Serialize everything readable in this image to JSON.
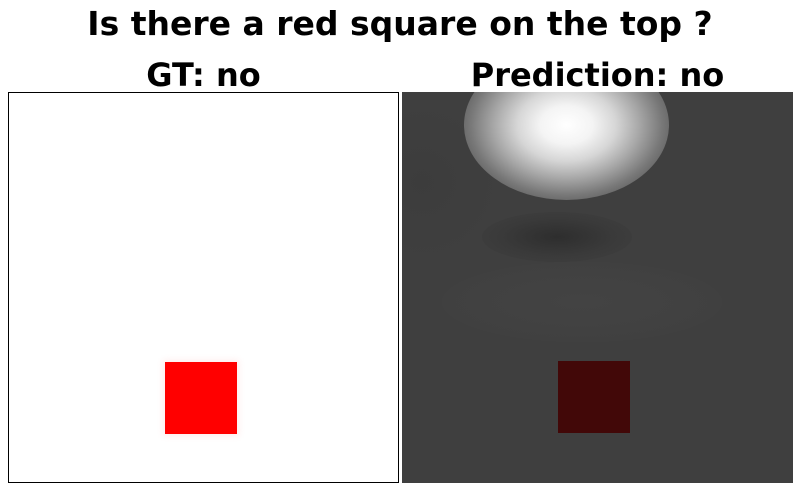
{
  "figure": {
    "question": "Is there a red square on the top ?",
    "gt_title": "GT: no",
    "prediction_title": "Prediction: no"
  },
  "colors": {
    "square_red": "#ff0000",
    "heatmap_background": "#3f3f3f",
    "heatmap_hotspot": "#ffffff",
    "overlay_square": "#420808"
  }
}
